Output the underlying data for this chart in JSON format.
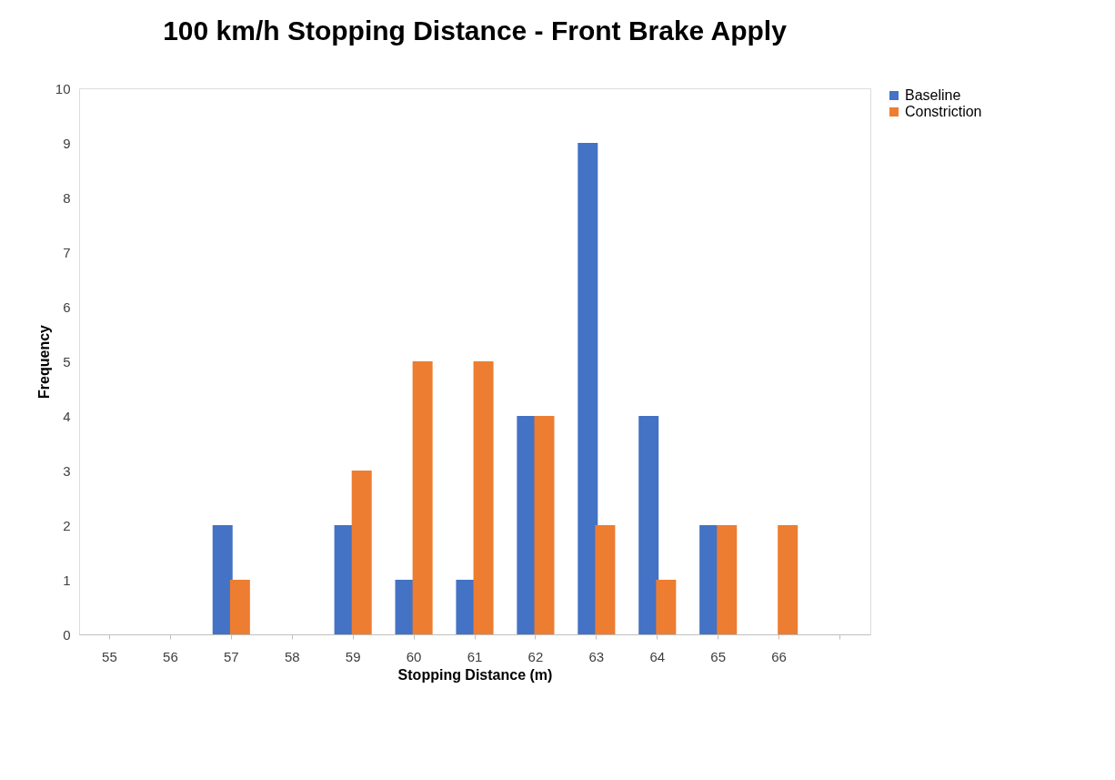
{
  "chart_data": {
    "type": "bar",
    "title": "100 km/h Stopping Distance - Front Brake Apply",
    "xlabel": "Stopping Distance (m)",
    "ylabel": "Frequency",
    "categories": [
      "55",
      "56",
      "57",
      "58",
      "59",
      "60",
      "61",
      "62",
      "63",
      "64",
      "65",
      "66",
      null
    ],
    "series": [
      {
        "name": "Baseline",
        "color": "#4472c4",
        "values": [
          0,
          0,
          2,
          0,
          2,
          1,
          1,
          4,
          9,
          4,
          2,
          0,
          0
        ]
      },
      {
        "name": "Constriction",
        "color": "#ed7d31",
        "values": [
          0,
          0,
          1,
          0,
          3,
          5,
          5,
          4,
          2,
          1,
          2,
          2,
          0
        ]
      }
    ],
    "ylim": [
      0,
      10
    ],
    "yticks": [
      0,
      1,
      2,
      3,
      4,
      5,
      6,
      7,
      8,
      9,
      10
    ],
    "grid": false,
    "legend": "right"
  }
}
